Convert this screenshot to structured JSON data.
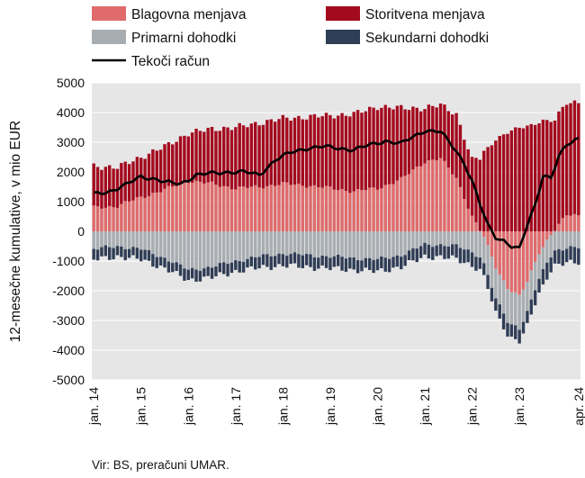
{
  "chart_data": {
    "type": "bar",
    "title": "",
    "ylabel": "12-mesečne kumulative, v mio EUR",
    "ylim": [
      -5000,
      5000
    ],
    "ytick_values": [
      5000,
      4000,
      3000,
      2000,
      1000,
      0,
      -1000,
      -2000,
      -3000,
      -4000,
      -5000
    ],
    "ytick_labels": [
      "5000",
      "4000",
      "3000",
      "2000",
      "1000",
      "0",
      "-1000",
      "-2000",
      "-3000",
      "-4000",
      "-5000"
    ],
    "x_period": {
      "first": "jan. 14",
      "last": "apr. 24",
      "months": 124
    },
    "xtick_labels": [
      {
        "label": "jan. 14",
        "month_index": 0
      },
      {
        "label": "jan. 15",
        "month_index": 12
      },
      {
        "label": "jan. 16",
        "month_index": 24
      },
      {
        "label": "jan. 17",
        "month_index": 36
      },
      {
        "label": "jan. 18",
        "month_index": 48
      },
      {
        "label": "jan. 19",
        "month_index": 60
      },
      {
        "label": "jan. 20",
        "month_index": 72
      },
      {
        "label": "jan. 21",
        "month_index": 84
      },
      {
        "label": "jan. 22",
        "month_index": 96
      },
      {
        "label": "jan. 23",
        "month_index": 108
      },
      {
        "label": "apr. 24",
        "month_index": 123
      }
    ],
    "grid": true,
    "legend_position": "top",
    "series_keyframes": [
      {
        "name": "Blagovna menjava",
        "color": "#df6b6b",
        "kind": "stacked-bar",
        "keyframes": [
          [
            0,
            800
          ],
          [
            6,
            850
          ],
          [
            12,
            1150
          ],
          [
            18,
            1400
          ],
          [
            24,
            1700
          ],
          [
            30,
            1600
          ],
          [
            36,
            1450
          ],
          [
            42,
            1500
          ],
          [
            48,
            1600
          ],
          [
            54,
            1550
          ],
          [
            60,
            1450
          ],
          [
            66,
            1350
          ],
          [
            72,
            1450
          ],
          [
            78,
            1750
          ],
          [
            84,
            2350
          ],
          [
            88,
            2450
          ],
          [
            92,
            1800
          ],
          [
            96,
            500
          ],
          [
            99,
            -200
          ],
          [
            102,
            -1200
          ],
          [
            105,
            -1900
          ],
          [
            108,
            -2200
          ],
          [
            110,
            -1700
          ],
          [
            113,
            -700
          ],
          [
            116,
            -100
          ],
          [
            118,
            200
          ],
          [
            120,
            550
          ],
          [
            123,
            550
          ]
        ]
      },
      {
        "name": "Storitvena menjava",
        "color": "#a40a1e",
        "kind": "stacked-bar",
        "keyframes": [
          [
            0,
            1400
          ],
          [
            6,
            1300
          ],
          [
            12,
            1350
          ],
          [
            18,
            1450
          ],
          [
            24,
            1600
          ],
          [
            30,
            1850
          ],
          [
            36,
            2050
          ],
          [
            42,
            2150
          ],
          [
            48,
            2200
          ],
          [
            54,
            2300
          ],
          [
            60,
            2450
          ],
          [
            66,
            2600
          ],
          [
            72,
            2750
          ],
          [
            78,
            2400
          ],
          [
            84,
            1800
          ],
          [
            88,
            1800
          ],
          [
            92,
            2150
          ],
          [
            96,
            1900
          ],
          [
            99,
            2700
          ],
          [
            102,
            3100
          ],
          [
            105,
            3300
          ],
          [
            108,
            3500
          ],
          [
            111,
            3600
          ],
          [
            114,
            3700
          ],
          [
            117,
            3700
          ],
          [
            120,
            3800
          ],
          [
            123,
            3800
          ]
        ]
      },
      {
        "name": "Primarni dohodki",
        "color": "#a8adb2",
        "kind": "stacked-bar",
        "keyframes": [
          [
            0,
            -600
          ],
          [
            6,
            -500
          ],
          [
            12,
            -600
          ],
          [
            18,
            -900
          ],
          [
            24,
            -1300
          ],
          [
            30,
            -1200
          ],
          [
            36,
            -1000
          ],
          [
            42,
            -850
          ],
          [
            48,
            -750
          ],
          [
            54,
            -800
          ],
          [
            60,
            -850
          ],
          [
            66,
            -900
          ],
          [
            72,
            -950
          ],
          [
            78,
            -800
          ],
          [
            84,
            -450
          ],
          [
            88,
            -450
          ],
          [
            92,
            -500
          ],
          [
            96,
            -700
          ],
          [
            100,
            -1000
          ],
          [
            104,
            -1100
          ],
          [
            108,
            -1100
          ],
          [
            111,
            -1000
          ],
          [
            114,
            -800
          ],
          [
            118,
            -600
          ],
          [
            123,
            -550
          ]
        ]
      },
      {
        "name": "Sekundarni dohodki",
        "color": "#2f3d55",
        "kind": "stacked-bar",
        "keyframes": [
          [
            0,
            -350
          ],
          [
            12,
            -350
          ],
          [
            24,
            -350
          ],
          [
            36,
            -350
          ],
          [
            48,
            -400
          ],
          [
            60,
            -400
          ],
          [
            72,
            -400
          ],
          [
            84,
            -400
          ],
          [
            96,
            -450
          ],
          [
            108,
            -450
          ],
          [
            116,
            -500
          ],
          [
            123,
            -500
          ]
        ]
      },
      {
        "name": "Tekoči račun",
        "color": "#000000",
        "kind": "line",
        "keyframes": [
          [
            0,
            1250
          ],
          [
            4,
            1350
          ],
          [
            8,
            1550
          ],
          [
            12,
            1850
          ],
          [
            16,
            1750
          ],
          [
            18,
            1650
          ],
          [
            22,
            1600
          ],
          [
            26,
            1900
          ],
          [
            30,
            1950
          ],
          [
            34,
            2000
          ],
          [
            38,
            2000
          ],
          [
            42,
            1900
          ],
          [
            46,
            2400
          ],
          [
            50,
            2650
          ],
          [
            54,
            2800
          ],
          [
            58,
            2850
          ],
          [
            62,
            2800
          ],
          [
            66,
            2750
          ],
          [
            70,
            2900
          ],
          [
            74,
            3050
          ],
          [
            78,
            2950
          ],
          [
            82,
            3250
          ],
          [
            84,
            3400
          ],
          [
            88,
            3350
          ],
          [
            92,
            2700
          ],
          [
            94,
            2300
          ],
          [
            96,
            1700
          ],
          [
            98,
            900
          ],
          [
            100,
            200
          ],
          [
            102,
            -200
          ],
          [
            104,
            -300
          ],
          [
            106,
            -500
          ],
          [
            108,
            -600
          ],
          [
            110,
            200
          ],
          [
            112,
            900
          ],
          [
            114,
            1900
          ],
          [
            116,
            1800
          ],
          [
            118,
            2500
          ],
          [
            120,
            2900
          ],
          [
            123,
            3150
          ]
        ]
      }
    ]
  },
  "legend": [
    {
      "label": "Blagovna menjava",
      "color": "#df6b6b",
      "kind": "box"
    },
    {
      "label": "Storitvena menjava",
      "color": "#a40a1e",
      "kind": "box"
    },
    {
      "label": "Primarni dohodki",
      "color": "#a8adb2",
      "kind": "box"
    },
    {
      "label": "Sekundarni dohodki",
      "color": "#2f3d55",
      "kind": "box"
    },
    {
      "label": "Tekoči račun",
      "color": "#000000",
      "kind": "line"
    }
  ],
  "source": "Vir: BS, preračuni UMAR."
}
